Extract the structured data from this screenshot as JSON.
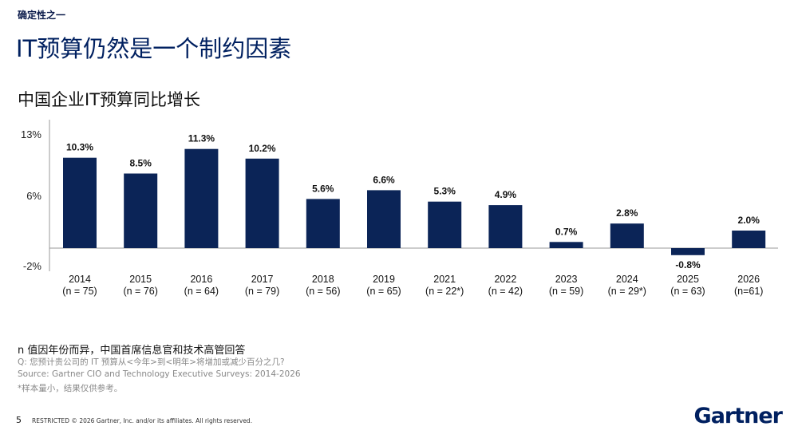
{
  "header": {
    "kicker": "确定性之一",
    "title": "IT预算仍然是一个制约因素",
    "subtitle": "中国企业IT预算同比增长"
  },
  "chart_data": {
    "type": "bar",
    "title": "中国企业IT预算同比增长",
    "categories": [
      "2014",
      "2015",
      "2016",
      "2017",
      "2018",
      "2019",
      "2021",
      "2022",
      "2023",
      "2024",
      "2025",
      "2026"
    ],
    "sample_sizes": [
      "(n = 75)",
      "(n = 76)",
      "(n = 64)",
      "(n = 79)",
      "(n = 56)",
      "(n = 65)",
      "(n = 22*)",
      "(n = 42)",
      "(n = 59)",
      "(n = 29*)",
      "(n = 63)",
      "(n=61)"
    ],
    "values": [
      10.3,
      8.5,
      11.3,
      10.2,
      5.6,
      6.6,
      5.3,
      4.9,
      0.7,
      2.8,
      -0.8,
      2.0
    ],
    "value_labels": [
      "10.3%",
      "8.5%",
      "11.3%",
      "10.2%",
      "5.6%",
      "6.6%",
      "5.3%",
      "4.9%",
      "0.7%",
      "2.8%",
      "-0.8%",
      "2.0%"
    ],
    "yticks": [
      13,
      6,
      -2
    ],
    "ytick_labels": [
      "13%",
      "6%",
      "-2%"
    ],
    "ylim": [
      -2,
      13
    ],
    "xlabel": "",
    "ylabel": "",
    "bar_color": "#0b2457"
  },
  "notes": {
    "n_note": "n 值因年份而异，中国首席信息官和技术高管回答",
    "question": "Q: 您预计贵公司的 IT 预算从<今年>到<明年>将增加或减少百分之几?",
    "source": "Source: Gartner CIO and Technology Executive Surveys: 2014-2026",
    "small_sample": "*样本量小，结果仅供参考。"
  },
  "footer": {
    "page_number": "5",
    "copyright": "RESTRICTED © 2026 Gartner, Inc. and/or its affiliates. All rights reserved.",
    "logo": "Gartner"
  }
}
